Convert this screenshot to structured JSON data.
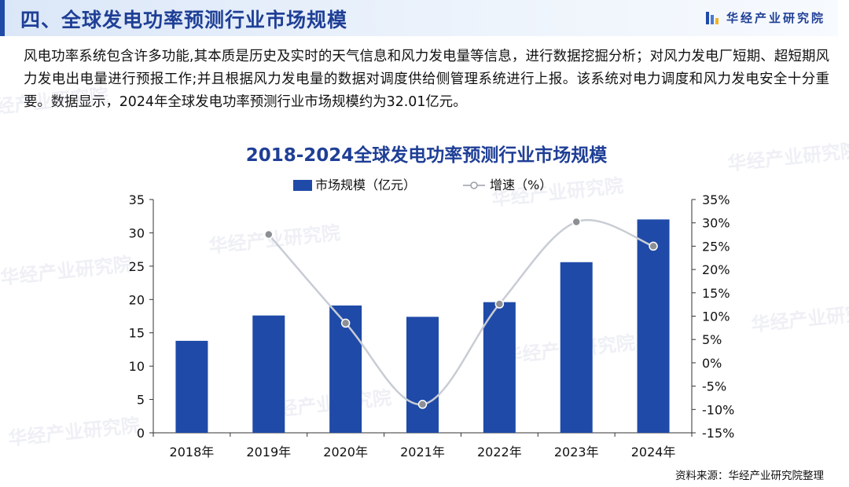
{
  "header": {
    "title": "四、全球发电功率预测行业市场规模",
    "brand": "华经产业研究院"
  },
  "intro": {
    "text": "风电功率系统包含许多功能,其本质是历史及实时的天气信息和风力发电量等信息，进行数据挖掘分析；对风力发电厂短期、超短期风力发电出电量进行预报工作;并且根据风力发电量的数据对调度供给侧管理系统进行上报。该系统对电力调度和风力发电安全十分重要。数据显示，2024年全球发电功率预测行业市场规模约为32.01亿元。"
  },
  "watermark": "华经产业研究院",
  "chart_data": {
    "type": "bar",
    "title": "2018-2024全球发电功率预测行业市场规模",
    "categories": [
      "2018年",
      "2019年",
      "2020年",
      "2021年",
      "2022年",
      "2023年",
      "2024年"
    ],
    "series": [
      {
        "name": "市场规模（亿元）",
        "type": "bar",
        "axis": "left",
        "values": [
          13.8,
          17.6,
          19.1,
          17.4,
          19.6,
          25.6,
          32.01
        ],
        "color": "#1f4aa8"
      },
      {
        "name": "增速（%）",
        "type": "line",
        "axis": "right",
        "values": [
          null,
          27.5,
          8.5,
          -8.9,
          12.6,
          30.2,
          25.0
        ],
        "color": "#c8ccd4"
      }
    ],
    "yleft": {
      "min": 0,
      "max": 35,
      "ticks": [
        0,
        5,
        10,
        15,
        20,
        25,
        30,
        35
      ]
    },
    "yright": {
      "min": -15,
      "max": 35,
      "ticks": [
        "-15%",
        "-10%",
        "-5%",
        "0%",
        "5%",
        "10%",
        "15%",
        "20%",
        "25%",
        "30%",
        "35%"
      ]
    },
    "legend_position": "top-center",
    "grid": false
  },
  "source": "资料来源：华经产业研究院整理",
  "colors": {
    "title_blue": "#1f3f96",
    "bar_blue": "#1f4aa8",
    "line_gray": "#c8ccd4",
    "marker_gray": "#8c8f94"
  }
}
